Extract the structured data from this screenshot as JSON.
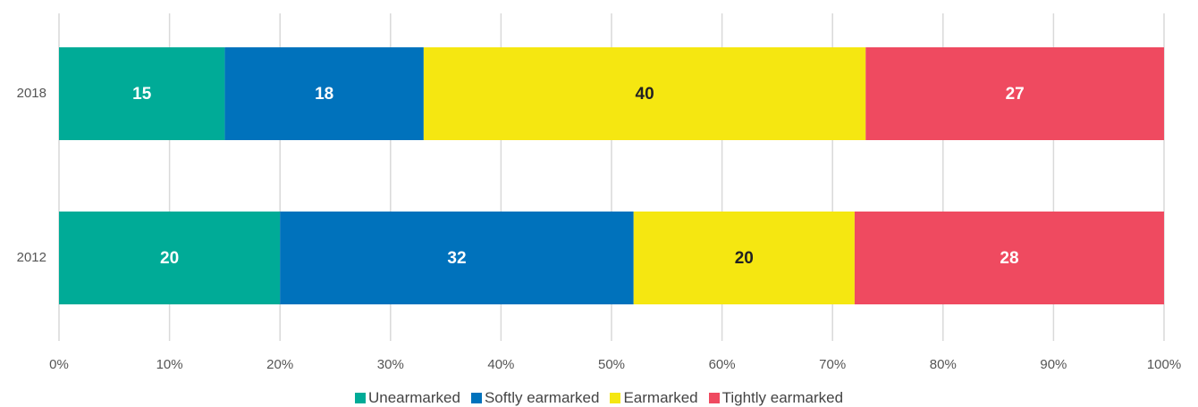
{
  "chart_data": {
    "type": "stacked_barh",
    "categories": [
      "2018",
      "2012"
    ],
    "series": [
      {
        "name": "Unearmarked",
        "color": "#00ab97",
        "label_color": "#ffffff",
        "values": [
          15,
          20
        ]
      },
      {
        "name": "Softly earmarked",
        "color": "#0072bc",
        "label_color": "#ffffff",
        "values": [
          18,
          32
        ]
      },
      {
        "name": "Earmarked",
        "color": "#f5e711",
        "label_color": "#222222",
        "values": [
          40,
          20
        ]
      },
      {
        "name": "Tightly earmarked",
        "color": "#ef4a60",
        "label_color": "#ffffff",
        "values": [
          27,
          28
        ]
      }
    ],
    "xlim": [
      0,
      100
    ],
    "xticks": [
      {
        "value": 0,
        "label": "0%"
      },
      {
        "value": 10,
        "label": "10%"
      },
      {
        "value": 20,
        "label": "20%"
      },
      {
        "value": 30,
        "label": "30%"
      },
      {
        "value": 40,
        "label": "40%"
      },
      {
        "value": 50,
        "label": "50%"
      },
      {
        "value": 60,
        "label": "60%"
      },
      {
        "value": 70,
        "label": "70%"
      },
      {
        "value": 80,
        "label": "80%"
      },
      {
        "value": 90,
        "label": "90%"
      },
      {
        "value": 100,
        "label": "100%"
      }
    ],
    "grid": true,
    "legend": "bottom"
  }
}
